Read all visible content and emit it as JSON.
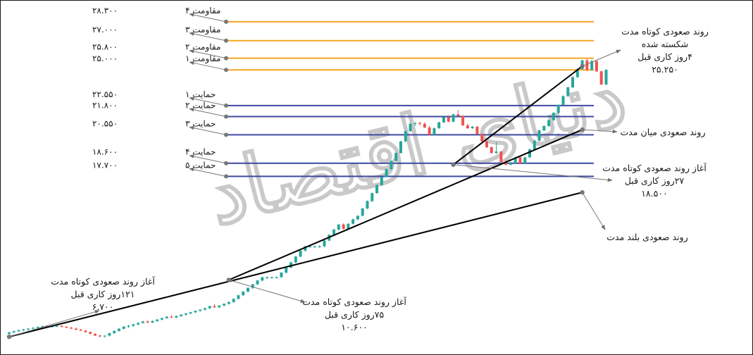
{
  "chart_data": {
    "type": "candlestick",
    "title": "",
    "xlabel": "",
    "ylabel": "",
    "ylim": [
      5500,
      29500
    ],
    "colors": {
      "up": "#26a69a",
      "down": "#ef5350",
      "resistance": "#f5a623",
      "support": "#3d4aa0",
      "trendline": "#000000",
      "pointer": "#777777"
    },
    "resistance_levels": [
      {
        "label": "مقاومت ۴",
        "value_label": "۲۸.۳۰۰",
        "value": 28300
      },
      {
        "label": "مقاومت ۳",
        "value_label": "۲۷.۰۰۰",
        "value": 27000
      },
      {
        "label": "مقاومت ۲",
        "value_label": "۲۵.۸۰۰",
        "value": 25800
      },
      {
        "label": "مقاومت ۱",
        "value_label": "۲۵.۰۰۰",
        "value": 25000
      }
    ],
    "support_levels": [
      {
        "label": "حمایت ۱",
        "value_label": "۲۲.۵۵۰",
        "value": 22550
      },
      {
        "label": "حمایت ۲",
        "value_label": "۲۱.۸۰۰",
        "value": 21800
      },
      {
        "label": "حمایت ۳",
        "value_label": "۲۰.۵۵۰",
        "value": 20550
      },
      {
        "label": "حمایت ۴",
        "value_label": "۱۸.۶۰۰",
        "value": 18600
      },
      {
        "label": "حمایت ۵",
        "value_label": "۱۷.۷۰۰",
        "value": 17700
      }
    ],
    "trendlines": [
      {
        "name": "long_term",
        "from": {
          "bar": 0,
          "value": 6700
        },
        "to": {
          "bar": 120,
          "value": 16600
        }
      },
      {
        "name": "mid_term",
        "from": {
          "bar": 46,
          "value": 10600
        },
        "to": {
          "bar": 120,
          "value": 20900
        }
      },
      {
        "name": "short_term",
        "from": {
          "bar": 93,
          "value": 18500
        },
        "to": {
          "bar": 120,
          "value": 25250
        }
      }
    ],
    "annotations": [
      {
        "name": "short-term-broken",
        "lines": [
          "روند صعودی کوتاه مدت",
          "شکسته شده",
          "۴روز کاری قبل",
          "۲۵.۲۵۰"
        ]
      },
      {
        "name": "mid-term",
        "lines": [
          "روند صعودی میان مدت"
        ]
      },
      {
        "name": "short-term-start-recent",
        "lines": [
          "آغاز روند صعودی کوتاه مدت",
          "۲۷روز کاری قبل",
          "۱۸.۵۰۰"
        ]
      },
      {
        "name": "long-term",
        "lines": [
          "روند صعودی بلند مدت"
        ]
      },
      {
        "name": "short-term-start-mid",
        "lines": [
          "آغاز روند صعودی کوتاه مدت",
          "۷۵روز کاری قبل",
          "۱۰.۶۰۰"
        ]
      },
      {
        "name": "short-term-start-early",
        "lines": [
          "آغاز روند صعودی کوتاه مدت",
          "۱۲۱روز کاری قبل",
          "۶.۷۰۰"
        ]
      }
    ],
    "watermark": "دنیای اقتصاد",
    "candles": [
      {
        "o": 6900,
        "h": 7050,
        "l": 6850,
        "c": 7000
      },
      {
        "o": 7000,
        "h": 7120,
        "l": 6950,
        "c": 7080
      },
      {
        "o": 7080,
        "h": 7200,
        "l": 7020,
        "c": 7150
      },
      {
        "o": 7150,
        "h": 7250,
        "l": 7080,
        "c": 7200
      },
      {
        "o": 7200,
        "h": 7300,
        "l": 7120,
        "c": 7260
      },
      {
        "o": 7260,
        "h": 7360,
        "l": 7200,
        "c": 7320
      },
      {
        "o": 7320,
        "h": 7420,
        "l": 7260,
        "c": 7380
      },
      {
        "o": 7380,
        "h": 7480,
        "l": 7320,
        "c": 7420
      },
      {
        "o": 7420,
        "h": 7500,
        "l": 7360,
        "c": 7400
      },
      {
        "o": 7400,
        "h": 7480,
        "l": 7330,
        "c": 7430
      },
      {
        "o": 7430,
        "h": 7520,
        "l": 7370,
        "c": 7440
      },
      {
        "o": 7440,
        "h": 7500,
        "l": 7350,
        "c": 7380
      },
      {
        "o": 7380,
        "h": 7450,
        "l": 7290,
        "c": 7320
      },
      {
        "o": 7320,
        "h": 7390,
        "l": 7230,
        "c": 7260
      },
      {
        "o": 7260,
        "h": 7330,
        "l": 7160,
        "c": 7180
      },
      {
        "o": 7180,
        "h": 7250,
        "l": 7090,
        "c": 7120
      },
      {
        "o": 7120,
        "h": 7180,
        "l": 6980,
        "c": 7020
      },
      {
        "o": 7020,
        "h": 7080,
        "l": 6880,
        "c": 6900
      },
      {
        "o": 6900,
        "h": 6960,
        "l": 6760,
        "c": 6780
      },
      {
        "o": 6780,
        "h": 6850,
        "l": 6680,
        "c": 6720
      },
      {
        "o": 6720,
        "h": 6800,
        "l": 6650,
        "c": 6780
      },
      {
        "o": 6780,
        "h": 6980,
        "l": 6720,
        "c": 6950
      },
      {
        "o": 6950,
        "h": 7150,
        "l": 6900,
        "c": 7100
      },
      {
        "o": 7100,
        "h": 7300,
        "l": 7050,
        "c": 7250
      },
      {
        "o": 7250,
        "h": 7420,
        "l": 7200,
        "c": 7400
      },
      {
        "o": 7400,
        "h": 7520,
        "l": 7300,
        "c": 7450
      },
      {
        "o": 7450,
        "h": 7600,
        "l": 7380,
        "c": 7550
      },
      {
        "o": 7550,
        "h": 7700,
        "l": 7480,
        "c": 7650
      },
      {
        "o": 7650,
        "h": 7800,
        "l": 7600,
        "c": 7750
      },
      {
        "o": 7750,
        "h": 7830,
        "l": 7640,
        "c": 7680
      },
      {
        "o": 7680,
        "h": 7820,
        "l": 7630,
        "c": 7780
      },
      {
        "o": 7780,
        "h": 7920,
        "l": 7720,
        "c": 7880
      },
      {
        "o": 7880,
        "h": 8020,
        "l": 7830,
        "c": 7980
      },
      {
        "o": 7980,
        "h": 8120,
        "l": 7930,
        "c": 8080
      },
      {
        "o": 8080,
        "h": 8180,
        "l": 7980,
        "c": 8020
      },
      {
        "o": 8020,
        "h": 8160,
        "l": 7980,
        "c": 8120
      },
      {
        "o": 8120,
        "h": 8260,
        "l": 8070,
        "c": 8220
      },
      {
        "o": 8220,
        "h": 8340,
        "l": 8150,
        "c": 8300
      },
      {
        "o": 8300,
        "h": 8420,
        "l": 8250,
        "c": 8380
      },
      {
        "o": 8380,
        "h": 8520,
        "l": 8320,
        "c": 8480
      },
      {
        "o": 8480,
        "h": 8600,
        "l": 8420,
        "c": 8560
      },
      {
        "o": 8560,
        "h": 8700,
        "l": 8500,
        "c": 8660
      },
      {
        "o": 8660,
        "h": 8830,
        "l": 8600,
        "c": 8800
      },
      {
        "o": 8800,
        "h": 8950,
        "l": 8680,
        "c": 8720
      },
      {
        "o": 8720,
        "h": 8860,
        "l": 8680,
        "c": 8840
      },
      {
        "o": 8840,
        "h": 9000,
        "l": 8790,
        "c": 8960
      },
      {
        "o": 8960,
        "h": 9120,
        "l": 8900,
        "c": 9080
      },
      {
        "o": 9080,
        "h": 9330,
        "l": 9040,
        "c": 9300
      },
      {
        "o": 9300,
        "h": 9570,
        "l": 9250,
        "c": 9550
      },
      {
        "o": 9550,
        "h": 9820,
        "l": 9500,
        "c": 9800
      },
      {
        "o": 9800,
        "h": 10080,
        "l": 9750,
        "c": 10050
      },
      {
        "o": 10050,
        "h": 10330,
        "l": 9980,
        "c": 10300
      },
      {
        "o": 10300,
        "h": 10600,
        "l": 10250,
        "c": 10560
      },
      {
        "o": 10560,
        "h": 10820,
        "l": 10500,
        "c": 10780
      },
      {
        "o": 10780,
        "h": 10830,
        "l": 10650,
        "c": 10780
      },
      {
        "o": 10780,
        "h": 10820,
        "l": 10680,
        "c": 10790
      },
      {
        "o": 10790,
        "h": 10840,
        "l": 10700,
        "c": 10790
      },
      {
        "o": 10790,
        "h": 11130,
        "l": 10750,
        "c": 11100
      },
      {
        "o": 11100,
        "h": 11480,
        "l": 11050,
        "c": 11450
      },
      {
        "o": 11450,
        "h": 11850,
        "l": 11400,
        "c": 11800
      },
      {
        "o": 11800,
        "h": 12250,
        "l": 11750,
        "c": 12200
      },
      {
        "o": 12200,
        "h": 12650,
        "l": 12150,
        "c": 12600
      },
      {
        "o": 12600,
        "h": 12950,
        "l": 12550,
        "c": 12900
      },
      {
        "o": 12900,
        "h": 12960,
        "l": 12800,
        "c": 12900
      },
      {
        "o": 12900,
        "h": 12950,
        "l": 12800,
        "c": 12900
      },
      {
        "o": 12900,
        "h": 12970,
        "l": 12810,
        "c": 12900
      },
      {
        "o": 12900,
        "h": 13320,
        "l": 12850,
        "c": 13300
      },
      {
        "o": 13300,
        "h": 13720,
        "l": 13250,
        "c": 13700
      },
      {
        "o": 13700,
        "h": 14100,
        "l": 13650,
        "c": 14050
      },
      {
        "o": 14050,
        "h": 14420,
        "l": 14000,
        "c": 14400
      },
      {
        "o": 14400,
        "h": 14480,
        "l": 14050,
        "c": 14100
      },
      {
        "o": 14100,
        "h": 14480,
        "l": 14050,
        "c": 14450
      },
      {
        "o": 14450,
        "h": 14800,
        "l": 14400,
        "c": 14750
      },
      {
        "o": 14750,
        "h": 15030,
        "l": 14700,
        "c": 15000
      },
      {
        "o": 15000,
        "h": 15520,
        "l": 14950,
        "c": 15500
      },
      {
        "o": 15500,
        "h": 16050,
        "l": 15450,
        "c": 16000
      },
      {
        "o": 16000,
        "h": 16580,
        "l": 15950,
        "c": 16550
      },
      {
        "o": 16550,
        "h": 17150,
        "l": 16500,
        "c": 17100
      },
      {
        "o": 17100,
        "h": 17680,
        "l": 17050,
        "c": 17650
      },
      {
        "o": 17650,
        "h": 18230,
        "l": 17600,
        "c": 18200
      },
      {
        "o": 18200,
        "h": 18800,
        "l": 18150,
        "c": 18750
      },
      {
        "o": 18750,
        "h": 19330,
        "l": 18700,
        "c": 19300
      },
      {
        "o": 19300,
        "h": 20130,
        "l": 19250,
        "c": 20100
      },
      {
        "o": 20100,
        "h": 20830,
        "l": 20050,
        "c": 20800
      },
      {
        "o": 20800,
        "h": 21350,
        "l": 20750,
        "c": 21300
      },
      {
        "o": 21300,
        "h": 21420,
        "l": 21150,
        "c": 21350
      },
      {
        "o": 21350,
        "h": 21450,
        "l": 21200,
        "c": 21300
      },
      {
        "o": 21300,
        "h": 21400,
        "l": 21000,
        "c": 21050
      },
      {
        "o": 21050,
        "h": 21150,
        "l": 20500,
        "c": 20550
      },
      {
        "o": 20550,
        "h": 21050,
        "l": 20500,
        "c": 21000
      },
      {
        "o": 21000,
        "h": 21450,
        "l": 20950,
        "c": 21400
      },
      {
        "o": 21400,
        "h": 21800,
        "l": 21350,
        "c": 21750
      },
      {
        "o": 21750,
        "h": 21900,
        "l": 21400,
        "c": 21450
      },
      {
        "o": 21450,
        "h": 22000,
        "l": 21400,
        "c": 21950
      },
      {
        "o": 21950,
        "h": 22250,
        "l": 21800,
        "c": 21850
      },
      {
        "o": 21850,
        "h": 21900,
        "l": 21150,
        "c": 21200
      },
      {
        "o": 21200,
        "h": 21300,
        "l": 20950,
        "c": 21000
      },
      {
        "o": 21000,
        "h": 21150,
        "l": 20950,
        "c": 21100
      },
      {
        "o": 21100,
        "h": 21150,
        "l": 20550,
        "c": 20600
      },
      {
        "o": 20600,
        "h": 20650,
        "l": 20050,
        "c": 20100
      },
      {
        "o": 20100,
        "h": 20150,
        "l": 19650,
        "c": 19700
      },
      {
        "o": 19700,
        "h": 19750,
        "l": 19250,
        "c": 19300
      },
      {
        "o": 19300,
        "h": 20050,
        "l": 19250,
        "c": 19400
      },
      {
        "o": 19400,
        "h": 19450,
        "l": 18650,
        "c": 18700
      },
      {
        "o": 18700,
        "h": 18800,
        "l": 18450,
        "c": 18500
      },
      {
        "o": 18500,
        "h": 18700,
        "l": 18450,
        "c": 18600
      },
      {
        "o": 18600,
        "h": 19050,
        "l": 18550,
        "c": 19000
      },
      {
        "o": 19000,
        "h": 19050,
        "l": 18550,
        "c": 18600
      },
      {
        "o": 18600,
        "h": 19050,
        "l": 18550,
        "c": 19000
      },
      {
        "o": 19000,
        "h": 19600,
        "l": 18950,
        "c": 19550
      },
      {
        "o": 19550,
        "h": 20200,
        "l": 19500,
        "c": 20150
      },
      {
        "o": 20150,
        "h": 20900,
        "l": 20100,
        "c": 20850
      },
      {
        "o": 20850,
        "h": 21200,
        "l": 20800,
        "c": 21150
      },
      {
        "o": 21150,
        "h": 21600,
        "l": 21100,
        "c": 21550
      },
      {
        "o": 21550,
        "h": 22100,
        "l": 21500,
        "c": 22050
      },
      {
        "o": 22050,
        "h": 22650,
        "l": 22000,
        "c": 22600
      },
      {
        "o": 22600,
        "h": 23250,
        "l": 22550,
        "c": 23200
      },
      {
        "o": 23200,
        "h": 23850,
        "l": 23150,
        "c": 23800
      },
      {
        "o": 23800,
        "h": 24550,
        "l": 23750,
        "c": 24500
      },
      {
        "o": 24500,
        "h": 25100,
        "l": 24450,
        "c": 25050
      },
      {
        "o": 25050,
        "h": 25700,
        "l": 25000,
        "c": 25650
      },
      {
        "o": 25650,
        "h": 25750,
        "l": 24900,
        "c": 25000
      },
      {
        "o": 25000,
        "h": 25700,
        "l": 24950,
        "c": 25600
      },
      {
        "o": 25600,
        "h": 25650,
        "l": 24850,
        "c": 24900
      },
      {
        "o": 24900,
        "h": 24950,
        "l": 23950,
        "c": 24000
      },
      {
        "o": 24000,
        "h": 25050,
        "l": 23950,
        "c": 25000
      }
    ]
  }
}
